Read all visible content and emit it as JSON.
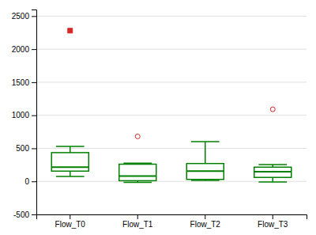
{
  "chart_data": {
    "type": "box",
    "categories": [
      "Flow_T0",
      "Flow_T1",
      "Flow_T2",
      "Flow_T3"
    ],
    "boxes": [
      {
        "q1": 155,
        "median": 215,
        "q3": 435,
        "whisker_low": 75,
        "whisker_high": 530,
        "outliers_open": [],
        "outliers_filled": [
          2280
        ]
      },
      {
        "q1": 10,
        "median": 80,
        "q3": 260,
        "whisker_low": -15,
        "whisker_high": 275,
        "outliers_open": [
          680
        ],
        "outliers_filled": []
      },
      {
        "q1": 30,
        "median": 155,
        "q3": 270,
        "whisker_low": 15,
        "whisker_high": 600,
        "outliers_open": [],
        "outliers_filled": []
      },
      {
        "q1": 60,
        "median": 145,
        "q3": 215,
        "whisker_low": -10,
        "whisker_high": 255,
        "outliers_open": [
          1090
        ],
        "outliers_filled": []
      }
    ],
    "color": "#008000",
    "ylim": [
      -500,
      2600
    ],
    "yticks": [
      -500,
      0,
      500,
      1000,
      1500,
      2000,
      2500
    ],
    "grid": true
  }
}
